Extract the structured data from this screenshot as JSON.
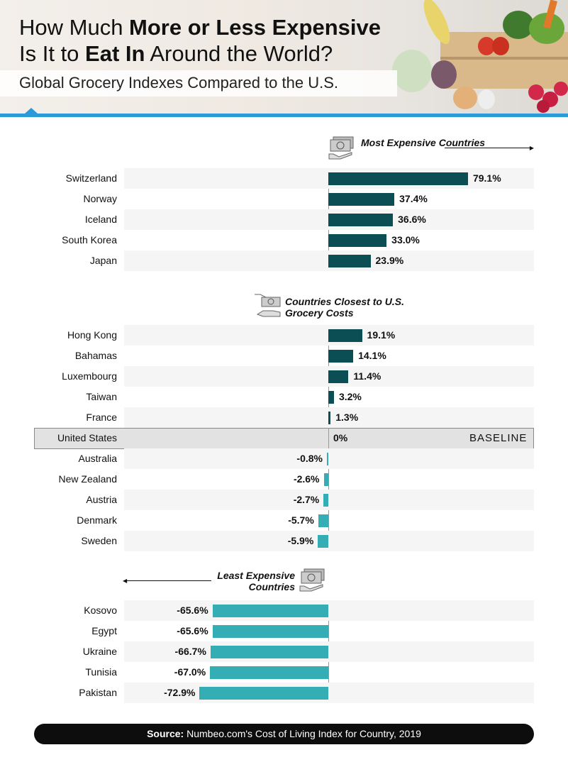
{
  "header": {
    "title_pre1": "How Much ",
    "title_bold1": "More or Less Expensive",
    "title_pre2": "Is It to ",
    "title_bold2": "Eat In",
    "title_post2": " Around the World?",
    "subtitle": "Global Grocery Indexes Compared to the U.S."
  },
  "colors": {
    "positive": "#0b4f55",
    "negative": "#35adb5",
    "accent": "#2b9ad8"
  },
  "chart_data": {
    "type": "bar",
    "orientation": "horizontal",
    "unit": "%",
    "xlim": [
      -75,
      80
    ],
    "sections": [
      {
        "title": "Most Expensive Countries",
        "icon": "money-hand-icon",
        "categories": [
          "Switzerland",
          "Norway",
          "Iceland",
          "South Korea",
          "Japan"
        ],
        "values": [
          79.1,
          37.4,
          36.6,
          33.0,
          23.9
        ],
        "labels": [
          "79.1%",
          "37.4%",
          "36.6%",
          "33.0%",
          "23.9%"
        ]
      },
      {
        "title": "Countries Closest to U.S. Grocery Costs",
        "icon": "money-exchange-icon",
        "categories": [
          "Hong Kong",
          "Bahamas",
          "Luxembourg",
          "Taiwan",
          "France",
          "United States",
          "Australia",
          "New Zealand",
          "Austria",
          "Denmark",
          "Sweden"
        ],
        "values": [
          19.1,
          14.1,
          11.4,
          3.2,
          1.3,
          0,
          -0.8,
          -2.6,
          -2.7,
          -5.7,
          -5.9
        ],
        "labels": [
          "19.1%",
          "14.1%",
          "11.4%",
          "3.2%",
          "1.3%",
          "0%",
          "-0.8%",
          "-2.6%",
          "-2.7%",
          "-5.7%",
          "-5.9%"
        ]
      },
      {
        "title": "Least Expensive Countries",
        "icon": "money-hand-icon",
        "categories": [
          "Kosovo",
          "Egypt",
          "Ukraine",
          "Tunisia",
          "Pakistan"
        ],
        "values": [
          -65.6,
          -65.6,
          -66.7,
          -67.0,
          -72.9
        ],
        "labels": [
          "-65.6%",
          "-65.6%",
          "-66.7%",
          "-67.0%",
          "-72.9%"
        ]
      }
    ],
    "baseline_label": "BASELINE"
  },
  "footer": {
    "source_label": "Source:",
    "source_text": " Numbeo.com's Cost of Living Index for Country, 2019"
  }
}
